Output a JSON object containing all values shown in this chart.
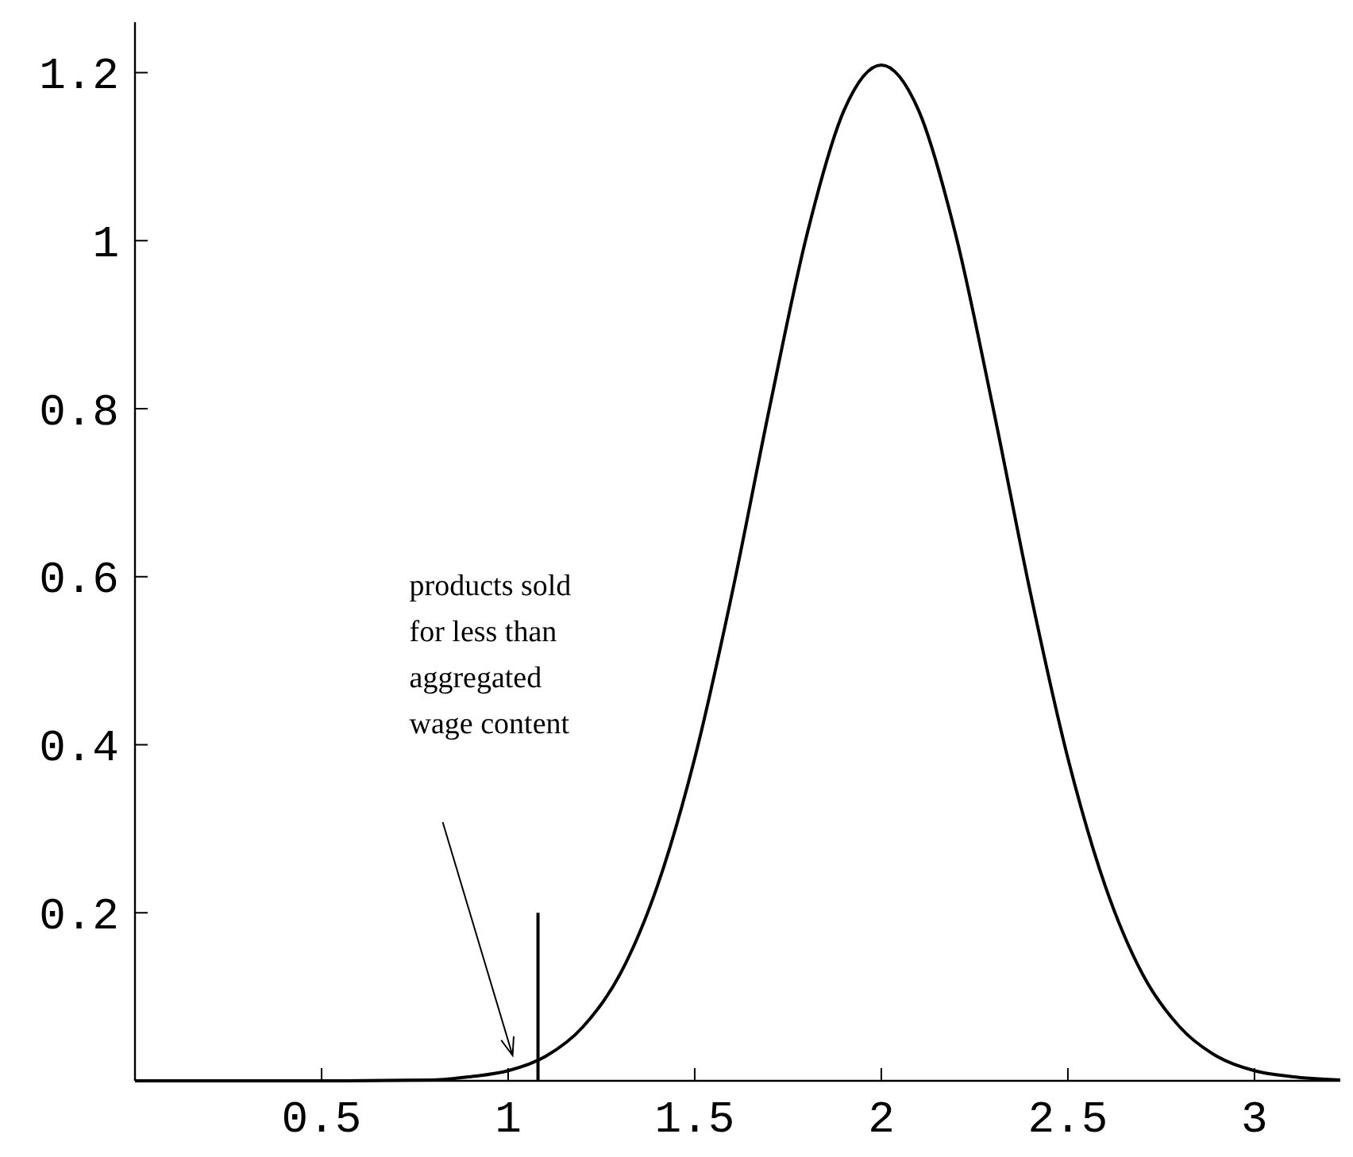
{
  "chart_data": {
    "type": "line",
    "xlim": [
      0,
      3.23
    ],
    "ylim": [
      0,
      1.26
    ],
    "xticks": [
      0.5,
      1,
      1.5,
      2,
      2.5,
      3
    ],
    "yticks": [
      0.2,
      0.4,
      0.6,
      0.8,
      1,
      1.2
    ],
    "grid": false,
    "marker": "none",
    "line_style": "solid",
    "series": [
      {
        "color": "#000000",
        "x": [
          0,
          0.5,
          0.8,
          0.9,
          1.0,
          1.1,
          1.2,
          1.3,
          1.4,
          1.5,
          1.6,
          1.7,
          1.8,
          1.9,
          2.0,
          2.1,
          2.2,
          2.3,
          2.4,
          2.5,
          2.6,
          2.7,
          2.8,
          2.9,
          3.0,
          3.1,
          3.23
        ],
        "values": [
          0,
          0,
          0.001,
          0.005,
          0.012,
          0.029,
          0.064,
          0.127,
          0.232,
          0.384,
          0.58,
          0.8,
          1.006,
          1.155,
          1.209,
          1.155,
          1.006,
          0.8,
          0.58,
          0.384,
          0.232,
          0.127,
          0.064,
          0.029,
          0.012,
          0.005,
          0.001
        ]
      },
      {
        "color": "#000000",
        "x": [
          1.08,
          1.08
        ],
        "values": [
          0,
          0.2
        ]
      }
    ],
    "annotations": [
      "products sold for less than aggregated wage content"
    ]
  }
}
